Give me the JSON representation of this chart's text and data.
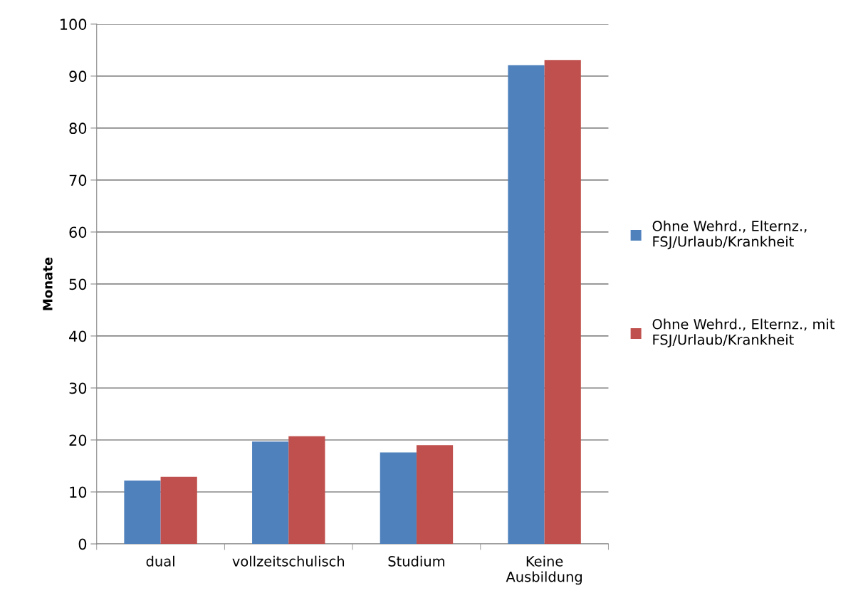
{
  "chart_data": {
    "type": "bar",
    "ylabel": "Monate",
    "categories": [
      "dual",
      "vollzeitschulisch",
      "Studium",
      "Keine\nAusbildung"
    ],
    "series": [
      {
        "name": "Ohne Wehrd., Elternz.,\nFSJ/Urlaub/Krankheit",
        "color": "#4f81bd",
        "values": [
          12.2,
          19.7,
          17.6,
          92.1
        ]
      },
      {
        "name": "Ohne Wehrd., Elternz., mit\nFSJ/Urlaub/Krankheit",
        "color": "#c0504d",
        "values": [
          12.9,
          20.7,
          19.0,
          93.1
        ]
      }
    ],
    "ylim": [
      0,
      100
    ],
    "yticks": [
      0,
      10,
      20,
      30,
      40,
      50,
      60,
      70,
      80,
      90,
      100
    ],
    "grid": "y",
    "legend": "right"
  }
}
